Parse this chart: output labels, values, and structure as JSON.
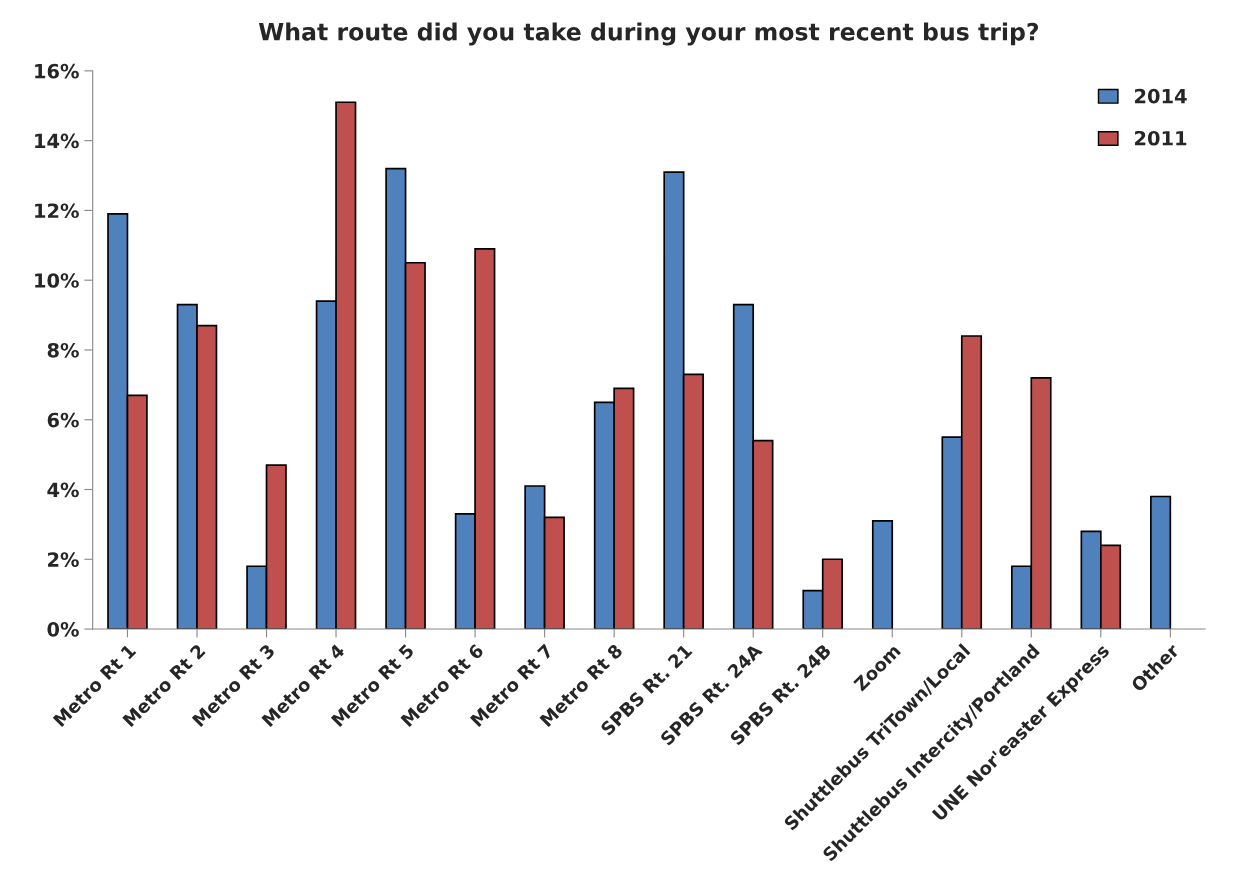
{
  "chart_data": {
    "type": "bar",
    "title": "What route did you take during your most recent bus trip?",
    "categories": [
      "Metro Rt 1",
      "Metro Rt 2",
      "Metro Rt 3",
      "Metro Rt 4",
      "Metro Rt 5",
      "Metro Rt 6",
      "Metro Rt 7",
      "Metro Rt 8",
      "SPBS Rt. 21",
      "SPBS Rt. 24A",
      "SPBS Rt. 24B",
      "Zoom",
      "Shuttlebus TriTown/Local",
      "Shuttlebus Intercity/Portland",
      "UNE Nor'easter Express",
      "Other"
    ],
    "series": [
      {
        "name": "2014",
        "color": "#4f81bd",
        "values": [
          11.9,
          9.3,
          1.8,
          9.4,
          13.2,
          3.3,
          4.1,
          6.5,
          13.1,
          9.3,
          1.1,
          3.1,
          5.5,
          1.8,
          2.8,
          3.8
        ]
      },
      {
        "name": "2011",
        "color": "#c0504d",
        "values": [
          6.7,
          8.7,
          4.7,
          15.1,
          10.5,
          10.9,
          3.2,
          6.9,
          7.3,
          5.4,
          2.0,
          null,
          8.4,
          7.2,
          2.4,
          null
        ]
      }
    ],
    "ylim": [
      0,
      16
    ],
    "yticks": [
      {
        "value": 0,
        "label": "0%"
      },
      {
        "value": 2,
        "label": "2%"
      },
      {
        "value": 4,
        "label": "4%"
      },
      {
        "value": 6,
        "label": "6%"
      },
      {
        "value": 8,
        "label": "8%"
      },
      {
        "value": 10,
        "label": "10%"
      },
      {
        "value": 12,
        "label": "12%"
      },
      {
        "value": 14,
        "label": "14%"
      },
      {
        "value": 16,
        "label": "16%"
      }
    ],
    "grid": false,
    "legend": "top right"
  }
}
